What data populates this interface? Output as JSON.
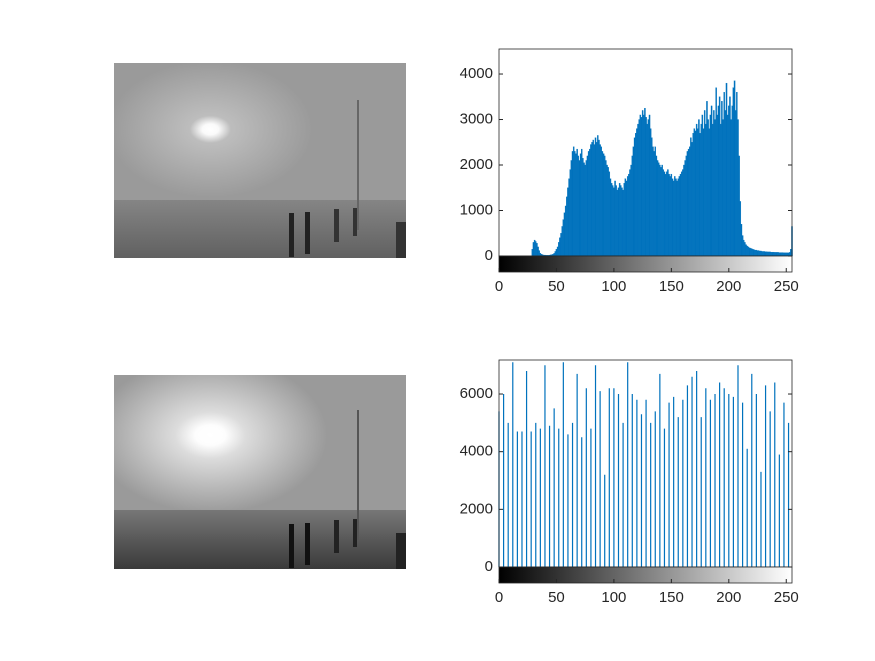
{
  "chart_data": [
    {
      "type": "bar",
      "color": "#0072bd",
      "xlim": [
        0,
        255
      ],
      "ylim": [
        0,
        4550
      ],
      "xticks": [
        0,
        50,
        100,
        150,
        200,
        250
      ],
      "yticks": [
        0,
        1000,
        2000,
        3000,
        4000
      ],
      "x": [
        29,
        30,
        31,
        32,
        33,
        34,
        35,
        36,
        37,
        38,
        39,
        40,
        41,
        42,
        43,
        44,
        45,
        46,
        47,
        48,
        49,
        50,
        51,
        52,
        53,
        54,
        55,
        56,
        57,
        58,
        59,
        60,
        61,
        62,
        63,
        64,
        65,
        66,
        67,
        68,
        69,
        70,
        71,
        72,
        73,
        74,
        75,
        76,
        77,
        78,
        79,
        80,
        81,
        82,
        83,
        84,
        85,
        86,
        87,
        88,
        89,
        90,
        91,
        92,
        93,
        94,
        95,
        96,
        97,
        98,
        99,
        100,
        101,
        102,
        103,
        104,
        105,
        106,
        107,
        108,
        109,
        110,
        111,
        112,
        113,
        114,
        115,
        116,
        117,
        118,
        119,
        120,
        121,
        122,
        123,
        124,
        125,
        126,
        127,
        128,
        129,
        130,
        131,
        132,
        133,
        134,
        135,
        136,
        137,
        138,
        139,
        140,
        141,
        142,
        143,
        144,
        145,
        146,
        147,
        148,
        149,
        150,
        151,
        152,
        153,
        154,
        155,
        156,
        157,
        158,
        159,
        160,
        161,
        162,
        163,
        164,
        165,
        166,
        167,
        168,
        169,
        170,
        171,
        172,
        173,
        174,
        175,
        176,
        177,
        178,
        179,
        180,
        181,
        182,
        183,
        184,
        185,
        186,
        187,
        188,
        189,
        190,
        191,
        192,
        193,
        194,
        195,
        196,
        197,
        198,
        199,
        200,
        201,
        202,
        203,
        204,
        205,
        206,
        207,
        208,
        209,
        210,
        211,
        212,
        213,
        214,
        215,
        216,
        217,
        218,
        219,
        220,
        221,
        222,
        223,
        224,
        225,
        226,
        227,
        228,
        229,
        230,
        231,
        232,
        233,
        234,
        235,
        236,
        237,
        238,
        239,
        240,
        241,
        242,
        243,
        244,
        245,
        246,
        247,
        248,
        249,
        250,
        251,
        252,
        253,
        254,
        255
      ],
      "values": [
        150,
        300,
        350,
        320,
        280,
        200,
        120,
        60,
        40,
        30,
        20,
        20,
        15,
        15,
        15,
        20,
        25,
        30,
        40,
        60,
        100,
        150,
        200,
        300,
        400,
        500,
        650,
        800,
        950,
        1100,
        1300,
        1500,
        1700,
        1900,
        2100,
        2300,
        2400,
        2300,
        2250,
        2350,
        2200,
        2100,
        2250,
        2350,
        2150,
        2050,
        2000,
        2100,
        2200,
        2300,
        2350,
        2450,
        2500,
        2550,
        2450,
        2600,
        2500,
        2650,
        2550,
        2450,
        2400,
        2300,
        2250,
        2200,
        2100,
        2000,
        1950,
        1850,
        1700,
        1600,
        1550,
        1500,
        1650,
        1550,
        1450,
        1500,
        1600,
        1550,
        1500,
        1450,
        1600,
        1700,
        1650,
        1750,
        1800,
        1900,
        2000,
        2200,
        2400,
        2600,
        2700,
        2800,
        2900,
        3000,
        3100,
        3050,
        3200,
        3100,
        3250,
        3050,
        2900,
        3000,
        3100,
        2800,
        2600,
        2400,
        2300,
        2400,
        2200,
        2100,
        2050,
        2000,
        1950,
        2000,
        1900,
        1850,
        1800,
        1850,
        1900,
        1800,
        1750,
        1800,
        1700,
        1650,
        1750,
        1700,
        1650,
        1700,
        1750,
        1800,
        1850,
        1900,
        2000,
        2100,
        2200,
        2300,
        2350,
        2400,
        2600,
        2500,
        2700,
        2800,
        2750,
        2900,
        2800,
        3000,
        2700,
        2900,
        3100,
        2800,
        3200,
        2900,
        3400,
        3000,
        2800,
        3100,
        3300,
        2900,
        3200,
        3000,
        3700,
        3100,
        3300,
        3500,
        2900,
        3400,
        3000,
        3600,
        3200,
        3800,
        3100,
        3300,
        3500,
        3000,
        3300,
        3700,
        3850,
        3200,
        3600,
        3000,
        2200,
        1200,
        700,
        450,
        350,
        300,
        250,
        220,
        200,
        180,
        170,
        160,
        150,
        140,
        130,
        130,
        120,
        120,
        110,
        110,
        100,
        100,
        100,
        95,
        95,
        90,
        90,
        90,
        85,
        85,
        85,
        80,
        80,
        80,
        80,
        75,
        75,
        75,
        75,
        70,
        70,
        70,
        70,
        70,
        80,
        150,
        650
      ]
    },
    {
      "type": "stem",
      "color": "#0072bd",
      "xlim": [
        0,
        255
      ],
      "ylim": [
        0,
        7180
      ],
      "xticks": [
        0,
        50,
        100,
        150,
        200,
        250
      ],
      "yticks": [
        0,
        2000,
        4000,
        6000
      ],
      "x": [
        0,
        4,
        8,
        12,
        16,
        20,
        24,
        28,
        32,
        36,
        40,
        44,
        48,
        52,
        56,
        60,
        64,
        68,
        72,
        76,
        80,
        84,
        88,
        92,
        96,
        100,
        104,
        108,
        112,
        116,
        120,
        124,
        128,
        132,
        136,
        140,
        144,
        148,
        152,
        156,
        160,
        164,
        168,
        172,
        176,
        180,
        184,
        188,
        192,
        196,
        200,
        204,
        208,
        212,
        216,
        220,
        224,
        228,
        232,
        236,
        240,
        244,
        248,
        252
      ],
      "values": [
        5400,
        6000,
        5000,
        7100,
        4700,
        4700,
        6800,
        4700,
        5000,
        4800,
        7000,
        4900,
        5500,
        4800,
        7100,
        4600,
        5000,
        6700,
        4500,
        6200,
        4800,
        7000,
        6100,
        3200,
        6200,
        6200,
        6000,
        5000,
        7100,
        6000,
        5800,
        5300,
        5800,
        5000,
        5400,
        6700,
        4800,
        5700,
        5900,
        5200,
        5800,
        6300,
        6600,
        6800,
        5200,
        6200,
        5800,
        6000,
        6400,
        6200,
        6000,
        5900,
        7000,
        5700,
        4100,
        6700,
        6000,
        3300,
        6300,
        5400,
        6400,
        3900,
        5700,
        5000
      ]
    }
  ]
}
